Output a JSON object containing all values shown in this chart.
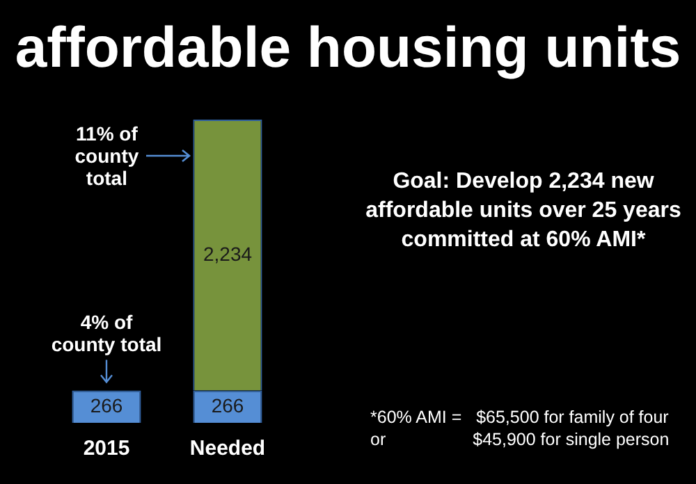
{
  "chart_data": {
    "type": "bar",
    "title": "affordable housing units",
    "categories": [
      "2015",
      "Needed"
    ],
    "stacked": true,
    "legend": false,
    "tick_labels": "x",
    "series": [
      {
        "color": "#558ed5",
        "values": [
          266,
          266
        ],
        "value_labels": [
          "266",
          "266"
        ]
      },
      {
        "color": "#77933c",
        "values": [
          null,
          2234
        ],
        "value_labels": [
          null,
          "2,234"
        ]
      }
    ],
    "annotations": [
      "11% of county total",
      {
        "text": "4% of county total",
        "x": "2015",
        "y": 266
      },
      "Goal: Develop 2,234 new affordable units over 25 years committed at 60%  AMI*",
      "*60% AMI =   $65,500 for family of four",
      "or                  $45,900 for single person"
    ]
  }
}
